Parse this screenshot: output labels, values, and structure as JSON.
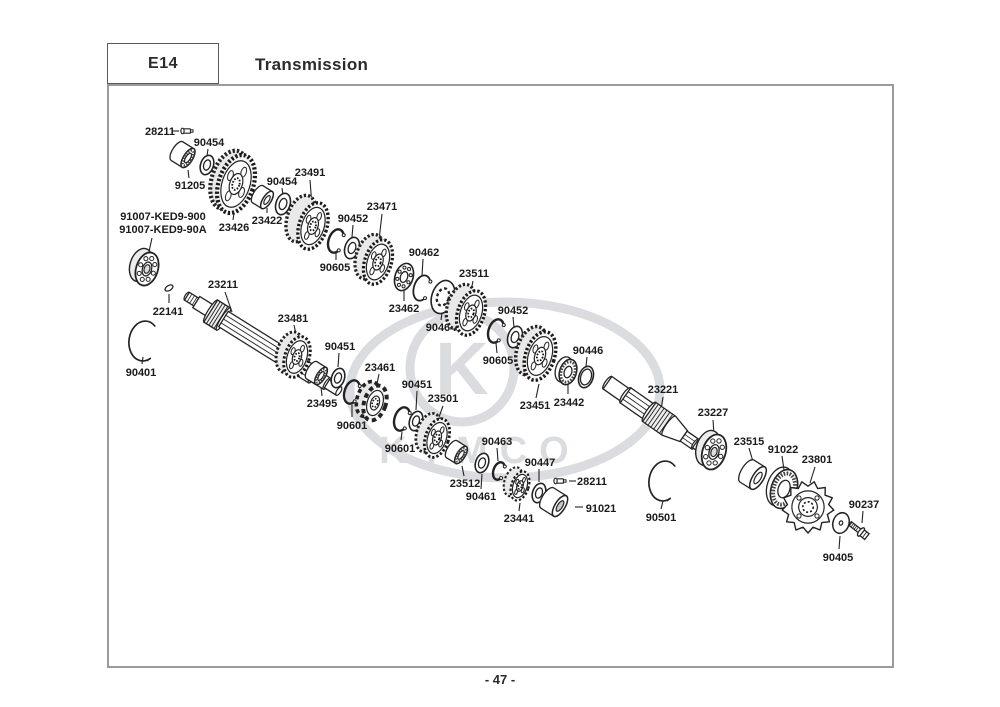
{
  "header": {
    "code": "E14",
    "title": "Transmission"
  },
  "footer": {
    "page_number": "- 47 -"
  },
  "watermark": {
    "text": "KYMCO"
  },
  "parts": [
    {
      "label": "28211",
      "type": "pin",
      "pp": [
        187,
        131
      ],
      "lp": [
        160,
        131
      ],
      "leader": [
        172,
        131,
        179,
        131
      ]
    },
    {
      "label": "90454",
      "type": "washer",
      "s": 10,
      "pp": [
        207,
        165
      ],
      "lp": [
        209,
        142
      ],
      "leader": [
        208,
        149,
        207,
        156
      ]
    },
    {
      "label": "91205",
      "type": "cyl",
      "s": 11,
      "d": 13,
      "roll": true,
      "pp": [
        188,
        158
      ],
      "lp": [
        190,
        185
      ],
      "leader": [
        189,
        178,
        188,
        170
      ]
    },
    {
      "label": "23426",
      "type": "gear",
      "s": 30,
      "d": 8,
      "pp": [
        236,
        184
      ],
      "lp": [
        234,
        227
      ],
      "leader": [
        233,
        220,
        234,
        213
      ]
    },
    {
      "label": "90454",
      "type": "washer",
      "s": 11,
      "pp": [
        283,
        204
      ],
      "lp": [
        282,
        181
      ],
      "leader": [
        282,
        188,
        283,
        195
      ]
    },
    {
      "label": "23422",
      "type": "cyl",
      "s": 10,
      "d": 11,
      "pp": [
        267,
        200
      ],
      "lp": [
        267,
        220
      ],
      "leader": [
        267,
        213,
        267,
        208
      ]
    },
    {
      "label": "23491",
      "type": "gear",
      "s": 24,
      "d": 14,
      "pp": [
        313,
        226
      ],
      "lp": [
        310,
        172
      ],
      "leader": [
        310,
        180,
        312,
        206
      ]
    },
    {
      "label": "91007-KED9-900",
      "label2": "91007-KED9-90A",
      "type": "ballb",
      "s": 17,
      "pp": [
        147,
        269
      ],
      "lp": [
        163,
        216
      ],
      "leader": [
        152,
        238,
        148,
        256
      ]
    },
    {
      "label": "22141",
      "type": "key",
      "pp": [
        169,
        288
      ],
      "lp": [
        168,
        311
      ],
      "leader": [
        169,
        294,
        169,
        303
      ]
    },
    {
      "label": "23211",
      "type": "shaft1",
      "pp": [
        265,
        345
      ],
      "lp": [
        223,
        284
      ],
      "leader": [
        225,
        292,
        232,
        312
      ]
    },
    {
      "label": "90401",
      "type": "bigclip",
      "s": 20,
      "pp": [
        144,
        341
      ],
      "lp": [
        141,
        372
      ],
      "leader": [
        142,
        364,
        143,
        357
      ]
    },
    {
      "label": "23481",
      "type": "gear",
      "s": 21,
      "d": 9,
      "pp": [
        297,
        357
      ],
      "lp": [
        293,
        318
      ],
      "leader": [
        294,
        325,
        296,
        334
      ]
    },
    {
      "label": "90451",
      "type": "washer",
      "s": 10,
      "pp": [
        338,
        378
      ],
      "lp": [
        340,
        346
      ],
      "leader": [
        339,
        353,
        338,
        367
      ]
    },
    {
      "label": "23495",
      "type": "cyl",
      "s": 10,
      "d": 11,
      "roll": true,
      "pp": [
        321,
        376
      ],
      "lp": [
        322,
        403
      ],
      "leader": [
        322,
        396,
        321,
        387
      ]
    },
    {
      "label": "90601",
      "type": "cring",
      "s": 12,
      "pp": [
        352,
        392
      ],
      "lp": [
        352,
        425
      ],
      "leader": [
        352,
        417,
        352,
        405
      ]
    },
    {
      "label": "23461",
      "type": "doghub",
      "s": 18,
      "pp": [
        375,
        403
      ],
      "lp": [
        380,
        367
      ],
      "leader": [
        379,
        374,
        377,
        384
      ]
    },
    {
      "label": "90601",
      "type": "cring",
      "s": 12,
      "pp": [
        402,
        419
      ],
      "lp": [
        400,
        448
      ],
      "leader": [
        401,
        440,
        402,
        432
      ]
    },
    {
      "label": "90451",
      "type": "washer",
      "s": 10,
      "pp": [
        416,
        421
      ],
      "lp": [
        417,
        384
      ],
      "leader": [
        417,
        391,
        416,
        410
      ]
    },
    {
      "label": "23501",
      "type": "gear",
      "s": 20,
      "d": 10,
      "pp": [
        437,
        438
      ],
      "lp": [
        443,
        398
      ],
      "leader": [
        443,
        406,
        439,
        417
      ]
    },
    {
      "label": "23512",
      "type": "cyl",
      "s": 10,
      "d": 11,
      "roll": true,
      "pp": [
        461,
        455
      ],
      "lp": [
        465,
        483
      ],
      "leader": [
        464,
        476,
        462,
        466
      ]
    },
    {
      "label": "90461",
      "type": "washer",
      "s": 10,
      "pp": [
        482,
        463
      ],
      "lp": [
        481,
        496
      ],
      "leader": [
        481,
        489,
        482,
        474
      ]
    },
    {
      "label": "90463",
      "type": "cring",
      "s": 9,
      "pp": [
        499,
        471
      ],
      "lp": [
        497,
        441
      ],
      "leader": [
        497,
        448,
        498,
        461
      ]
    },
    {
      "label": "90447",
      "type": "washer",
      "s": 10,
      "pp": [
        539,
        493
      ],
      "lp": [
        540,
        462
      ],
      "leader": [
        539,
        469,
        539,
        482
      ]
    },
    {
      "label": "28211",
      "type": "pin",
      "pp": [
        560,
        481
      ],
      "lp": [
        592,
        481
      ],
      "leader": [
        569,
        481,
        576,
        481
      ]
    },
    {
      "label": "23441",
      "type": "gear",
      "s": 15,
      "d": 8,
      "pp": [
        520,
        486
      ],
      "lp": [
        519,
        518
      ],
      "leader": [
        519,
        511,
        520,
        503
      ]
    },
    {
      "label": "91021",
      "type": "cyl",
      "s": 12,
      "d": 15,
      "dark": true,
      "pp": [
        560,
        506
      ],
      "lp": [
        601,
        508
      ],
      "leader": [
        575,
        507,
        583,
        507
      ]
    },
    {
      "label": "90605",
      "type": "cring",
      "s": 12,
      "pp": [
        336,
        241
      ],
      "lp": [
        335,
        267
      ],
      "leader": [
        336,
        260,
        336,
        252
      ]
    },
    {
      "label": "90452",
      "type": "washer",
      "s": 11,
      "pp": [
        352,
        248
      ],
      "lp": [
        353,
        218
      ],
      "leader": [
        353,
        225,
        352,
        237
      ]
    },
    {
      "label": "23471",
      "type": "gear",
      "s": 23,
      "d": 10,
      "pp": [
        378,
        262
      ],
      "lp": [
        382,
        206
      ],
      "leader": [
        382,
        214,
        379,
        240
      ]
    },
    {
      "label": "90462",
      "type": "cring",
      "s": 13,
      "sw": 1.8,
      "pp": [
        422,
        288
      ],
      "lp": [
        424,
        252
      ],
      "leader": [
        423,
        259,
        422,
        276
      ]
    },
    {
      "label": "23462",
      "type": "ballflat",
      "s": 14,
      "pp": [
        404,
        277
      ],
      "lp": [
        404,
        308
      ],
      "leader": [
        404,
        301,
        404,
        291
      ]
    },
    {
      "label": "90464",
      "type": "platew",
      "s": 17,
      "pp": [
        443,
        297
      ],
      "lp": [
        441,
        327
      ],
      "leader": [
        441,
        320,
        442,
        313
      ]
    },
    {
      "label": "23511",
      "type": "gear",
      "s": 23,
      "d": 12,
      "pp": [
        471,
        313
      ],
      "lp": [
        474,
        273
      ],
      "leader": [
        473,
        281,
        471,
        291
      ]
    },
    {
      "label": "90452",
      "type": "washer",
      "s": 11,
      "pp": [
        515,
        337
      ],
      "lp": [
        513,
        310
      ],
      "leader": [
        513,
        317,
        514,
        327
      ]
    },
    {
      "label": "90605",
      "type": "cring",
      "s": 12,
      "pp": [
        496,
        331
      ],
      "lp": [
        498,
        360
      ],
      "leader": [
        497,
        353,
        496,
        343
      ]
    },
    {
      "label": "23451",
      "type": "gear",
      "s": 25,
      "d": 10,
      "pp": [
        540,
        356
      ],
      "lp": [
        535,
        405
      ],
      "leader": [
        536,
        398,
        539,
        384
      ]
    },
    {
      "label": "23442",
      "type": "seal",
      "s": 13,
      "pp": [
        568,
        372
      ],
      "lp": [
        569,
        402
      ],
      "leader": [
        568,
        394,
        568,
        385
      ]
    },
    {
      "label": "90446",
      "type": "washer",
      "s": 11,
      "thin": true,
      "pp": [
        586,
        377
      ],
      "lp": [
        588,
        350
      ],
      "leader": [
        587,
        357,
        586,
        366
      ]
    },
    {
      "label": "23221",
      "type": "shaft2",
      "pp": [
        655,
        416
      ],
      "lp": [
        663,
        389
      ],
      "leader": [
        663,
        397,
        661,
        410
      ]
    },
    {
      "label": "23227",
      "type": "ballb",
      "s": 18,
      "pp": [
        714,
        452
      ],
      "lp": [
        713,
        412
      ],
      "leader": [
        713,
        420,
        714,
        435
      ]
    },
    {
      "label": "23515",
      "type": "cyl",
      "s": 13,
      "d": 13,
      "pp": [
        758,
        478
      ],
      "lp": [
        749,
        441
      ],
      "leader": [
        749,
        448,
        754,
        465
      ]
    },
    {
      "label": "91022",
      "type": "seal",
      "s": 20,
      "pp": [
        784,
        489
      ],
      "lp": [
        783,
        449
      ],
      "leader": [
        782,
        456,
        784,
        470
      ]
    },
    {
      "label": "23801",
      "type": "sprocket",
      "s": 26,
      "pp": [
        808,
        507
      ],
      "lp": [
        817,
        459
      ],
      "leader": [
        815,
        467,
        810,
        483
      ]
    },
    {
      "label": "90237",
      "type": "bolt",
      "pp": [
        861,
        532
      ],
      "lp": [
        864,
        504
      ],
      "leader": [
        863,
        511,
        862,
        523
      ]
    },
    {
      "label": "90405",
      "type": "disc",
      "pp": [
        841,
        523
      ],
      "lp": [
        838,
        557
      ],
      "leader": [
        839,
        549,
        840,
        536
      ]
    },
    {
      "label": "90501",
      "type": "bigclip",
      "s": 20,
      "pp": [
        664,
        481
      ],
      "lp": [
        661,
        517
      ],
      "leader": [
        661,
        509,
        663,
        501
      ]
    }
  ]
}
